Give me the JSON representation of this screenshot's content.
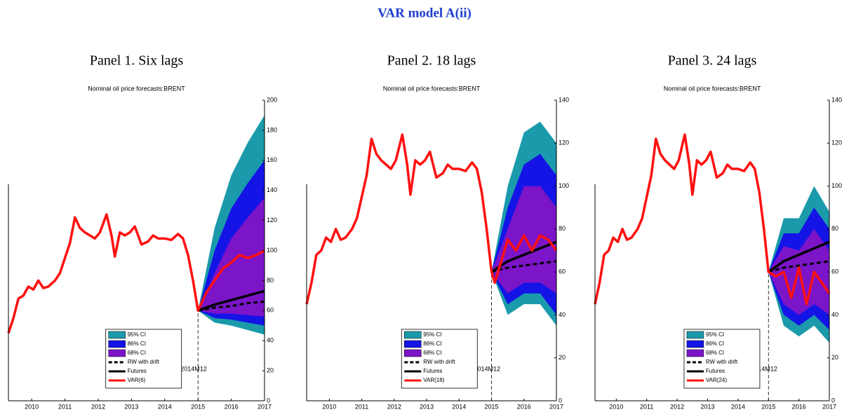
{
  "title": "VAR model A(ii)",
  "chart_data": [
    {
      "type": "line",
      "panel_title": "Panel 1. Six lags",
      "title": "Nominal oil price forecasts:BRENT",
      "annotation": "2014M12",
      "xlim": [
        2009.3,
        2017
      ],
      "xticks": [
        2010,
        2011,
        2012,
        2013,
        2014,
        2015,
        2016,
        2017
      ],
      "ylim": [
        0,
        200
      ],
      "yticks": [
        0,
        20,
        40,
        60,
        80,
        100,
        120,
        140,
        160,
        180,
        200
      ],
      "bands": [
        {
          "name": "95% CI",
          "color": "#1a9aaa",
          "x": [
            2015,
            2015.5,
            2016,
            2016.5,
            2017
          ],
          "lower": [
            60,
            52,
            50,
            47,
            44
          ],
          "upper": [
            60,
            115,
            150,
            172,
            190
          ]
        },
        {
          "name": "86% CI",
          "color": "#1414e6",
          "x": [
            2015,
            2015.5,
            2016,
            2016.5,
            2017
          ],
          "lower": [
            60,
            55,
            54,
            52,
            50
          ],
          "upper": [
            60,
            100,
            128,
            145,
            160
          ]
        },
        {
          "name": "68% CI",
          "color": "#7c14c8",
          "x": [
            2015,
            2015.5,
            2016,
            2016.5,
            2017
          ],
          "lower": [
            60,
            58,
            58,
            57,
            56
          ],
          "upper": [
            60,
            85,
            108,
            122,
            135
          ]
        }
      ],
      "series": [
        {
          "name": "RW with drift",
          "color": "#000000",
          "dash": true,
          "x": [
            2015,
            2015.5,
            2016,
            2016.5,
            2017
          ],
          "values": [
            60,
            62,
            63,
            65,
            66
          ]
        },
        {
          "name": "Futures",
          "color": "#000000",
          "dash": false,
          "x": [
            2015,
            2015.5,
            2016,
            2016.5,
            2017
          ],
          "values": [
            60,
            64,
            67,
            70,
            73
          ]
        },
        {
          "name": "VAR(6)",
          "color": "#ff1010",
          "dash": false,
          "x": [
            2009.3,
            2009.45,
            2009.6,
            2009.75,
            2009.9,
            2010.05,
            2010.2,
            2010.35,
            2010.5,
            2010.7,
            2010.85,
            2011.0,
            2011.15,
            2011.3,
            2011.45,
            2011.6,
            2011.75,
            2011.9,
            2012.05,
            2012.25,
            2012.4,
            2012.5,
            2012.65,
            2012.8,
            2012.95,
            2013.1,
            2013.3,
            2013.5,
            2013.65,
            2013.8,
            2014.0,
            2014.2,
            2014.4,
            2014.55,
            2014.7,
            2014.85,
            2015.0,
            2015.25,
            2015.5,
            2015.75,
            2016.0,
            2016.25,
            2016.5,
            2016.75,
            2017.0
          ],
          "values": [
            45,
            55,
            68,
            70,
            76,
            74,
            80,
            75,
            76,
            80,
            85,
            95,
            105,
            122,
            115,
            112,
            110,
            108,
            112,
            124,
            110,
            96,
            112,
            110,
            112,
            116,
            104,
            106,
            110,
            108,
            108,
            107,
            111,
            108,
            97,
            80,
            60,
            72,
            80,
            88,
            92,
            97,
            95,
            97,
            100
          ]
        }
      ]
    },
    {
      "type": "line",
      "panel_title": "Panel 2. 18 lags",
      "title": "Nominal oil price forecasts:BRENT",
      "annotation": "2014M12",
      "xlim": [
        2009.3,
        2017
      ],
      "xticks": [
        2010,
        2011,
        2012,
        2013,
        2014,
        2015,
        2016,
        2017
      ],
      "ylim": [
        0,
        140
      ],
      "yticks": [
        0,
        20,
        40,
        60,
        80,
        100,
        120,
        140
      ],
      "bands": [
        {
          "name": "95% CI",
          "color": "#1a9aaa",
          "x": [
            2015,
            2015.5,
            2016,
            2016.5,
            2017
          ],
          "lower": [
            60,
            40,
            45,
            45,
            35
          ],
          "upper": [
            60,
            100,
            125,
            130,
            120
          ]
        },
        {
          "name": "86% CI",
          "color": "#1414e6",
          "x": [
            2015,
            2015.5,
            2016,
            2016.5,
            2017
          ],
          "lower": [
            60,
            45,
            50,
            50,
            40
          ],
          "upper": [
            60,
            90,
            110,
            115,
            105
          ]
        },
        {
          "name": "68% CI",
          "color": "#7c14c8",
          "x": [
            2015,
            2015.5,
            2016,
            2016.5,
            2017
          ],
          "lower": [
            60,
            50,
            55,
            55,
            50
          ],
          "upper": [
            60,
            80,
            100,
            100,
            90
          ]
        }
      ],
      "series": [
        {
          "name": "RW with drift",
          "color": "#000000",
          "dash": true,
          "x": [
            2015,
            2015.5,
            2016,
            2016.5,
            2017
          ],
          "values": [
            60,
            62,
            63,
            64,
            65
          ]
        },
        {
          "name": "Futures",
          "color": "#000000",
          "dash": false,
          "x": [
            2015,
            2015.5,
            2016,
            2016.5,
            2017
          ],
          "values": [
            60,
            65,
            68,
            71,
            74
          ]
        },
        {
          "name": "VAR(18)",
          "color": "#ff1010",
          "dash": false,
          "x": [
            2009.3,
            2009.45,
            2009.6,
            2009.75,
            2009.9,
            2010.05,
            2010.2,
            2010.35,
            2010.5,
            2010.7,
            2010.85,
            2011.0,
            2011.15,
            2011.3,
            2011.45,
            2011.6,
            2011.75,
            2011.9,
            2012.05,
            2012.25,
            2012.4,
            2012.5,
            2012.65,
            2012.8,
            2012.95,
            2013.1,
            2013.3,
            2013.5,
            2013.65,
            2013.8,
            2014.0,
            2014.2,
            2014.4,
            2014.55,
            2014.7,
            2014.85,
            2015.0,
            2015.1,
            2015.3,
            2015.5,
            2015.75,
            2016.0,
            2016.25,
            2016.5,
            2016.75,
            2017.0
          ],
          "values": [
            45,
            55,
            68,
            70,
            76,
            74,
            80,
            75,
            76,
            80,
            85,
            95,
            105,
            122,
            115,
            112,
            110,
            108,
            112,
            124,
            110,
            96,
            112,
            110,
            112,
            116,
            104,
            106,
            110,
            108,
            108,
            107,
            111,
            108,
            97,
            80,
            60,
            55,
            65,
            75,
            70,
            77,
            70,
            77,
            75,
            70
          ]
        }
      ]
    },
    {
      "type": "line",
      "panel_title": "Panel 3. 24 lags",
      "title": "Nominal oil price forecasts:BRENT",
      "annotation": "2014M12",
      "xlim": [
        2009.3,
        2017
      ],
      "xticks": [
        2010,
        2011,
        2012,
        2013,
        2014,
        2015,
        2016,
        2017
      ],
      "ylim": [
        0,
        140
      ],
      "yticks": [
        0,
        20,
        40,
        60,
        80,
        100,
        120,
        140
      ],
      "bands": [
        {
          "name": "95% CI",
          "color": "#1a9aaa",
          "x": [
            2015,
            2015.5,
            2016,
            2016.5,
            2017
          ],
          "lower": [
            60,
            35,
            30,
            35,
            27
          ],
          "upper": [
            60,
            85,
            85,
            100,
            88
          ]
        },
        {
          "name": "86% CI",
          "color": "#1414e6",
          "x": [
            2015,
            2015.5,
            2016,
            2016.5,
            2017
          ],
          "lower": [
            60,
            40,
            35,
            40,
            33
          ],
          "upper": [
            60,
            78,
            78,
            90,
            80
          ]
        },
        {
          "name": "68% CI",
          "color": "#7c14c8",
          "x": [
            2015,
            2015.5,
            2016,
            2016.5,
            2017
          ],
          "lower": [
            60,
            45,
            40,
            45,
            40
          ],
          "upper": [
            60,
            72,
            70,
            80,
            70
          ]
        }
      ],
      "series": [
        {
          "name": "RW with drift",
          "color": "#000000",
          "dash": true,
          "x": [
            2015,
            2015.5,
            2016,
            2016.5,
            2017
          ],
          "values": [
            60,
            62,
            63,
            64,
            65
          ]
        },
        {
          "name": "Futures",
          "color": "#000000",
          "dash": false,
          "x": [
            2015,
            2015.5,
            2016,
            2016.5,
            2017
          ],
          "values": [
            60,
            65,
            68,
            71,
            74
          ]
        },
        {
          "name": "VAR(24)",
          "color": "#ff1010",
          "dash": false,
          "x": [
            2009.3,
            2009.45,
            2009.6,
            2009.75,
            2009.9,
            2010.05,
            2010.2,
            2010.35,
            2010.5,
            2010.7,
            2010.85,
            2011.0,
            2011.15,
            2011.3,
            2011.45,
            2011.6,
            2011.75,
            2011.9,
            2012.05,
            2012.25,
            2012.4,
            2012.5,
            2012.65,
            2012.8,
            2012.95,
            2013.1,
            2013.3,
            2013.5,
            2013.65,
            2013.8,
            2014.0,
            2014.2,
            2014.4,
            2014.55,
            2014.7,
            2014.85,
            2015.0,
            2015.25,
            2015.5,
            2015.75,
            2016.0,
            2016.25,
            2016.5,
            2016.75,
            2017.0
          ],
          "values": [
            45,
            55,
            68,
            70,
            76,
            74,
            80,
            75,
            76,
            80,
            85,
            95,
            105,
            122,
            115,
            112,
            110,
            108,
            112,
            124,
            110,
            96,
            112,
            110,
            112,
            116,
            104,
            106,
            110,
            108,
            108,
            107,
            111,
            108,
            97,
            80,
            60,
            58,
            60,
            48,
            62,
            45,
            60,
            55,
            50
          ]
        }
      ]
    }
  ]
}
